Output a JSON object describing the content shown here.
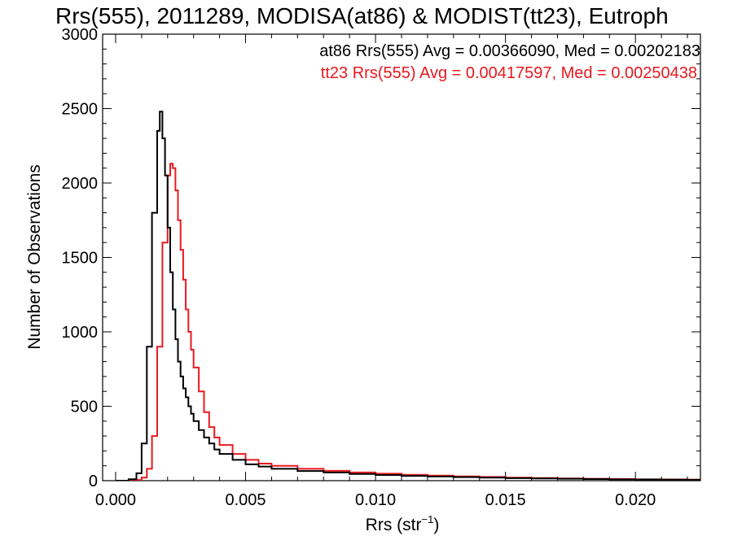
{
  "chart_data": {
    "type": "line",
    "title": "Rrs(555), 2011289, MODISA(at86) & MODIST(tt23), Eutroph",
    "xlabel": "Rrs (str",
    "xlabel_sup": "−1",
    "xlabel_end": ")",
    "ylabel": "Number of Observations",
    "xlim": [
      -0.0005,
      0.0225
    ],
    "ylim": [
      0,
      3000
    ],
    "xticks": [
      0.0,
      0.005,
      0.01,
      0.015,
      0.02
    ],
    "xtick_labels": [
      "0.000",
      "0.005",
      "0.010",
      "0.015",
      "0.020"
    ],
    "yticks": [
      0,
      500,
      1000,
      1500,
      2000,
      2500,
      3000
    ],
    "ytick_labels": [
      "0",
      "500",
      "1000",
      "1500",
      "2000",
      "2500",
      "3000"
    ],
    "grid": false,
    "step": true,
    "series": [
      {
        "name": "at86",
        "color": "#000000",
        "annotation": "at86 Rrs(555) Avg = 0.00366090, Med = 0.00202183",
        "x": [
          0.0,
          0.0005,
          0.0008,
          0.001,
          0.0012,
          0.0014,
          0.0016,
          0.0017,
          0.0018,
          0.0019,
          0.002,
          0.0021,
          0.0022,
          0.0023,
          0.0024,
          0.0025,
          0.0026,
          0.0027,
          0.0028,
          0.0029,
          0.003,
          0.0032,
          0.0034,
          0.0036,
          0.0038,
          0.004,
          0.0045,
          0.005,
          0.0055,
          0.006,
          0.007,
          0.008,
          0.009,
          0.01,
          0.011,
          0.012,
          0.013,
          0.014,
          0.015,
          0.016,
          0.017,
          0.018,
          0.019,
          0.02,
          0.021,
          0.022
        ],
        "y": [
          0,
          10,
          50,
          250,
          900,
          1800,
          2350,
          2480,
          2300,
          2050,
          1700,
          1400,
          1150,
          950,
          800,
          700,
          620,
          560,
          500,
          450,
          400,
          340,
          290,
          250,
          210,
          180,
          140,
          110,
          95,
          80,
          65,
          55,
          45,
          38,
          32,
          28,
          24,
          20,
          17,
          15,
          13,
          11,
          9,
          8,
          7,
          6
        ]
      },
      {
        "name": "tt23",
        "color": "#e8191f",
        "annotation": "tt23 Rrs(555) Avg = 0.00417597, Med = 0.00250438",
        "x": [
          0.0,
          0.0008,
          0.001,
          0.0012,
          0.0014,
          0.0016,
          0.0018,
          0.002,
          0.0021,
          0.0022,
          0.0023,
          0.0024,
          0.0025,
          0.0026,
          0.0027,
          0.0028,
          0.0029,
          0.003,
          0.0032,
          0.0034,
          0.0036,
          0.0038,
          0.004,
          0.0045,
          0.005,
          0.0055,
          0.006,
          0.007,
          0.008,
          0.009,
          0.01,
          0.011,
          0.012,
          0.013,
          0.014,
          0.015,
          0.016,
          0.017,
          0.018,
          0.019,
          0.02,
          0.021,
          0.022
        ],
        "y": [
          0,
          5,
          20,
          80,
          300,
          900,
          1600,
          2050,
          2130,
          2100,
          1950,
          1750,
          1550,
          1350,
          1150,
          1000,
          880,
          760,
          600,
          460,
          360,
          290,
          240,
          180,
          140,
          115,
          100,
          80,
          66,
          55,
          47,
          40,
          34,
          29,
          25,
          21,
          18,
          15,
          13,
          11,
          9,
          8,
          7
        ]
      }
    ]
  }
}
